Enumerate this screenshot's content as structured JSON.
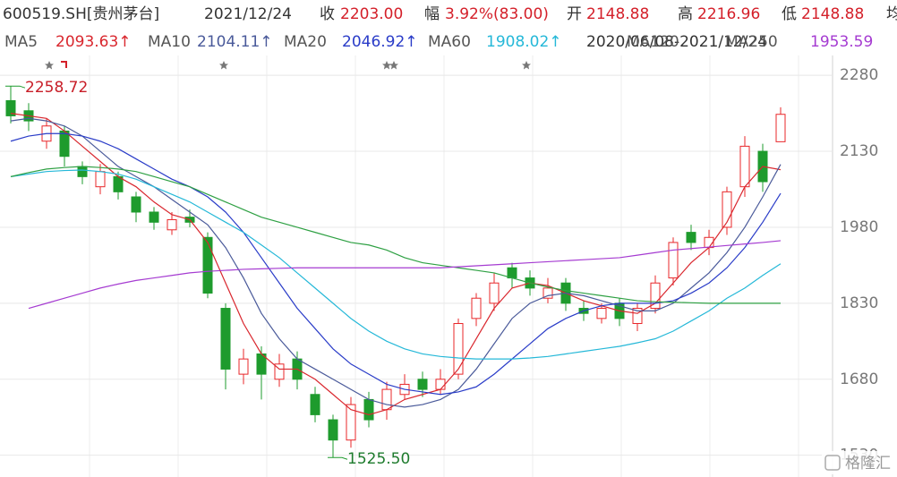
{
  "header": {
    "code": "600519.SH[贵州茅台]",
    "date": "2021/12/24",
    "close_label": "收",
    "close": "2203.00",
    "change_label": "幅",
    "change": "3.92%(83.00)",
    "open_label": "开",
    "open": "2148.88",
    "high_label": "高",
    "high": "2216.96",
    "low_label": "低",
    "low": "2148.88",
    "avg_label": "均",
    "date_range": "2020/06/08-2021/12/24",
    "watermark": "格隆汇"
  },
  "chart_data": {
    "type": "candlestick",
    "open": [
      2230,
      2210,
      2150,
      2170,
      2100,
      2060,
      2080,
      2040,
      2010,
      1975,
      2000,
      1960,
      1820,
      1690,
      1730,
      1680,
      1720,
      1650,
      1600,
      1560,
      1640,
      1620,
      1650,
      1680,
      1660,
      1690,
      1800,
      1830,
      1900,
      1880,
      1840,
      1870,
      1820,
      1800,
      1830,
      1790,
      1820,
      1880,
      1970,
      1940,
      1980,
      2060,
      2130,
      2148.88
    ],
    "high": [
      2258.72,
      2225,
      2195,
      2180,
      2110,
      2105,
      2090,
      2050,
      2020,
      2010,
      2015,
      1970,
      1830,
      1740,
      1745,
      1730,
      1735,
      1665,
      1610,
      1645,
      1655,
      1675,
      1690,
      1695,
      1700,
      1800,
      1850,
      1890,
      1910,
      1895,
      1880,
      1880,
      1835,
      1830,
      1840,
      1830,
      1885,
      1960,
      1985,
      1975,
      2060,
      2160,
      2145,
      2216.96
    ],
    "low": [
      2185,
      2170,
      2135,
      2100,
      2065,
      2045,
      2035,
      1990,
      1975,
      1965,
      1980,
      1840,
      1660,
      1670,
      1640,
      1665,
      1660,
      1595,
      1525.5,
      1545,
      1585,
      1600,
      1640,
      1645,
      1650,
      1680,
      1785,
      1815,
      1860,
      1845,
      1830,
      1815,
      1795,
      1790,
      1785,
      1775,
      1810,
      1865,
      1935,
      1925,
      1965,
      2040,
      2050,
      2148.88
    ],
    "close": [
      2200,
      2190,
      2180,
      2120,
      2080,
      2090,
      2050,
      2010,
      1990,
      1995,
      1990,
      1850,
      1700,
      1720,
      1690,
      1710,
      1680,
      1610,
      1560,
      1630,
      1600,
      1660,
      1670,
      1660,
      1680,
      1790,
      1840,
      1870,
      1880,
      1860,
      1860,
      1830,
      1810,
      1820,
      1800,
      1820,
      1870,
      1950,
      1950,
      1960,
      2050,
      2140,
      2070,
      2203
    ],
    "up_color": "#e8272a",
    "down_color": "#1e9b2d",
    "ylim": [
      1510,
      2305
    ],
    "yticks": [
      1530,
      1680,
      1830,
      1980,
      2130,
      2280
    ],
    "grid": true,
    "annotations": [
      {
        "value": 2258.72,
        "label": "2258.72"
      },
      {
        "value": 1525.5,
        "label": "1525.50"
      }
    ],
    "series": [
      {
        "name": "MA5",
        "color": "#d9272e",
        "legend_label": "2093.63↑",
        "values": [
          2205,
          2200,
          2195,
          2170,
          2140,
          2110,
          2080,
          2060,
          2030,
          2005,
          1995,
          1950,
          1870,
          1790,
          1730,
          1700,
          1700,
          1680,
          1650,
          1620,
          1610,
          1620,
          1640,
          1650,
          1660,
          1700,
          1760,
          1820,
          1860,
          1870,
          1865,
          1850,
          1835,
          1825,
          1815,
          1810,
          1830,
          1870,
          1910,
          1940,
          1990,
          2060,
          2100,
          2093.63
        ]
      },
      {
        "name": "MA10",
        "color": "#4a5a9a",
        "legend_label": "2104.11↑",
        "values": [
          2190,
          2195,
          2190,
          2180,
          2160,
          2130,
          2100,
          2080,
          2060,
          2035,
          2010,
          1985,
          1940,
          1880,
          1810,
          1760,
          1720,
          1700,
          1680,
          1660,
          1640,
          1630,
          1625,
          1630,
          1640,
          1660,
          1700,
          1750,
          1800,
          1830,
          1845,
          1850,
          1845,
          1835,
          1825,
          1815,
          1815,
          1830,
          1860,
          1890,
          1930,
          1980,
          2040,
          2104.11
        ]
      },
      {
        "name": "MA20",
        "color": "#2a3cc8",
        "legend_label": "2046.92↑",
        "values": [
          2150,
          2160,
          2165,
          2165,
          2160,
          2150,
          2135,
          2115,
          2095,
          2075,
          2060,
          2040,
          2010,
          1970,
          1920,
          1870,
          1820,
          1780,
          1740,
          1710,
          1690,
          1670,
          1660,
          1655,
          1650,
          1655,
          1665,
          1690,
          1720,
          1750,
          1780,
          1800,
          1815,
          1825,
          1830,
          1830,
          1830,
          1835,
          1850,
          1870,
          1900,
          1940,
          1990,
          2046.92
        ]
      },
      {
        "name": "MA60",
        "color": "#25b8d8",
        "legend_label": "1908.02↑",
        "values": [
          2080,
          2085,
          2090,
          2092,
          2093,
          2090,
          2085,
          2075,
          2060,
          2045,
          2030,
          2010,
          1990,
          1970,
          1945,
          1920,
          1890,
          1860,
          1830,
          1800,
          1775,
          1755,
          1740,
          1730,
          1725,
          1722,
          1720,
          1720,
          1720,
          1722,
          1725,
          1730,
          1735,
          1740,
          1745,
          1752,
          1760,
          1775,
          1795,
          1815,
          1840,
          1860,
          1885,
          1908.02
        ]
      },
      {
        "name": "MA120",
        "color": "#2ea043",
        "values": [
          2080,
          2088,
          2095,
          2098,
          2100,
          2098,
          2095,
          2090,
          2080,
          2070,
          2060,
          2045,
          2030,
          2015,
          2000,
          1990,
          1980,
          1970,
          1960,
          1950,
          1945,
          1935,
          1920,
          1910,
          1905,
          1900,
          1895,
          1890,
          1880,
          1870,
          1862,
          1855,
          1850,
          1845,
          1840,
          1835,
          1833,
          1832,
          1831,
          1830,
          1830,
          1830,
          1830,
          1830
        ]
      },
      {
        "name": "MA250",
        "color": "#a53bd1",
        "legend_label": "1953.59",
        "values": [
          null,
          1820,
          1830,
          1840,
          1850,
          1860,
          1868,
          1875,
          1880,
          1885,
          1890,
          1893,
          1895,
          1897,
          1898,
          1899,
          1900,
          1900,
          1900,
          1900,
          1900,
          1900,
          1900,
          1900,
          1900,
          1902,
          1904,
          1906,
          1908,
          1910,
          1912,
          1914,
          1916,
          1918,
          1920,
          1925,
          1930,
          1935,
          1938,
          1941,
          1944,
          1947,
          1950,
          1953.59
        ]
      }
    ]
  }
}
